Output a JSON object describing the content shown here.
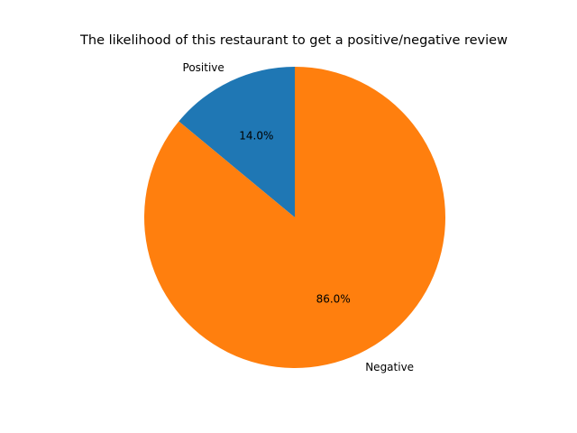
{
  "chart_data": {
    "type": "pie",
    "title": "The likelihood of this restaurant to get a positive/negative review",
    "slices": [
      {
        "label": "Positive",
        "value": 14.0,
        "pct_label": "14.0%",
        "color": "#1f77b4"
      },
      {
        "label": "Negative",
        "value": 86.0,
        "pct_label": "86.0%",
        "color": "#ff7f0e"
      }
    ],
    "start_angle_deg": 90,
    "direction": "counterclockwise",
    "legend": "none"
  }
}
